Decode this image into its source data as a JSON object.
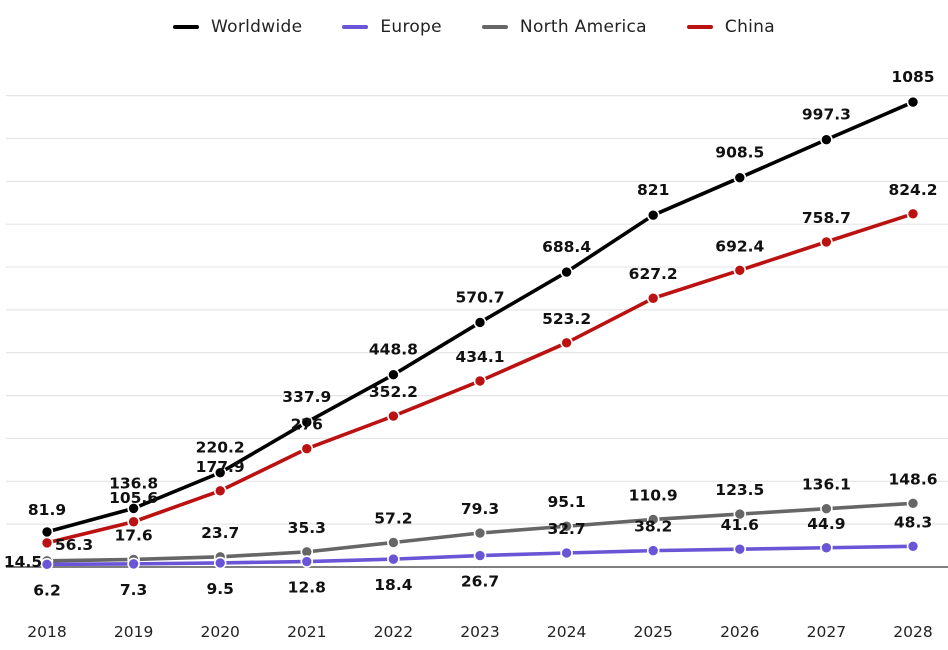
{
  "chart_data": {
    "type": "line",
    "title": "",
    "xlabel": "",
    "ylabel": "",
    "x": [
      "2018",
      "2019",
      "2020",
      "2021",
      "2022",
      "2023",
      "2024",
      "2025",
      "2026",
      "2027",
      "2028"
    ],
    "ylim": [
      -80,
      1100
    ],
    "grid": true,
    "legend_position": "top-center",
    "series": [
      {
        "name": "Worldwide",
        "color": "#000000",
        "values": [
          81.9,
          136.8,
          220.2,
          337.9,
          448.8,
          570.7,
          688.4,
          821,
          908.5,
          997.3,
          1085
        ],
        "labels": [
          "81.9",
          "136.8",
          "220.2",
          "337.9",
          "448.8",
          "570.7",
          "688.4",
          "821",
          "908.5",
          "997.3",
          "1085"
        ]
      },
      {
        "name": "Europe",
        "color": "#6a55d6",
        "values": [
          6.2,
          7.3,
          9.5,
          12.8,
          18.4,
          26.7,
          32.7,
          38.2,
          41.6,
          44.9,
          48.3
        ],
        "labels": [
          "6.2",
          "7.3",
          "9.5",
          "12.8",
          "18.4",
          "26.7",
          "32.7",
          "38.2",
          "41.6",
          "44.9",
          "48.3"
        ]
      },
      {
        "name": "North America",
        "color": "#666666",
        "values": [
          14.5,
          17.6,
          23.7,
          35.3,
          57.2,
          79.3,
          95.1,
          110.9,
          123.5,
          136.1,
          148.6
        ],
        "labels": [
          "14.5",
          "17.6",
          "23.7",
          "35.3",
          "57.2",
          "79.3",
          "95.1",
          "110.9",
          "123.5",
          "136.1",
          "148.6"
        ]
      },
      {
        "name": "China",
        "color": "#bb1111",
        "values": [
          56.3,
          105.6,
          177.9,
          276,
          352.2,
          434.1,
          523.2,
          627.2,
          692.4,
          758.7,
          824.2
        ],
        "labels": [
          "56.3",
          "105.6",
          "177.9",
          "276",
          "352.2",
          "434.1",
          "523.2",
          "627.2",
          "692.4",
          "758.7",
          "824.2"
        ]
      }
    ]
  }
}
